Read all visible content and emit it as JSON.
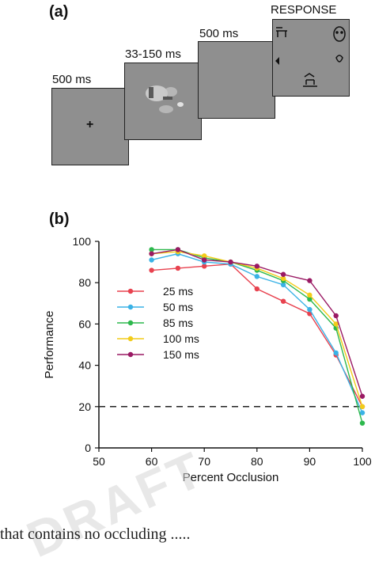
{
  "panel_a": {
    "label": "(a)",
    "stages": [
      {
        "time": "500 ms",
        "content": "fixation"
      },
      {
        "time": "33-150 ms",
        "content": "image"
      },
      {
        "time": "500 ms",
        "content": "mask"
      },
      {
        "time": "RESPONSE",
        "content": "choices"
      }
    ],
    "fixation_symbol": "+"
  },
  "panel_b": {
    "label": "(b)"
  },
  "chart_data": {
    "type": "line",
    "xlabel": "Percent Occlusion",
    "ylabel": "Performance",
    "xlim": [
      50,
      100
    ],
    "ylim": [
      0,
      100
    ],
    "xticks": [
      50,
      60,
      70,
      80,
      90,
      100
    ],
    "yticks": [
      0,
      20,
      40,
      60,
      80,
      100
    ],
    "x": [
      60,
      65,
      70,
      75,
      80,
      85,
      90,
      95,
      100
    ],
    "reference_line": {
      "y": 20,
      "style": "dashed"
    },
    "legend_position": "center-left",
    "series": [
      {
        "name": "25 ms",
        "color": "#e8424f",
        "values": [
          86,
          87,
          88,
          89,
          77,
          71,
          65,
          45,
          20
        ]
      },
      {
        "name": "50 ms",
        "color": "#3ab2e6",
        "values": [
          91,
          94,
          90,
          89,
          83,
          79,
          67,
          46,
          17
        ]
      },
      {
        "name": "85 ms",
        "color": "#2db84d",
        "values": [
          96,
          96,
          92,
          90,
          86,
          81,
          72,
          58,
          12
        ]
      },
      {
        "name": "100 ms",
        "color": "#f2cc1a",
        "values": [
          94,
          95,
          93,
          90,
          87,
          82,
          74,
          60,
          20
        ]
      },
      {
        "name": "150 ms",
        "color": "#9a1a64",
        "values": [
          94,
          96,
          91,
          90,
          88,
          84,
          81,
          64,
          25
        ]
      }
    ]
  },
  "footer_text": "that contains no occluding ....."
}
